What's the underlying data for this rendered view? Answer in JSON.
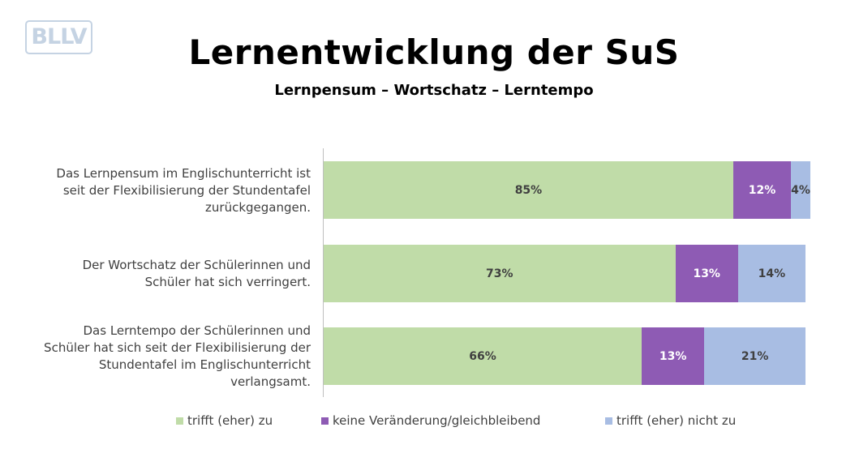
{
  "logo_text": "BLLV",
  "chart_data": {
    "type": "bar",
    "orientation": "horizontal",
    "stacked": true,
    "title": "Lernentwicklung der SuS",
    "subtitle": "Lernpensum – Wortschatz – Lerntempo",
    "categories": [
      "Das Lernpensum im Englischunterricht ist seit der Flexibilisierung der Stundentafel zurückgegangen.",
      "Der Wortschatz der Schülerinnen und Schüler hat sich verringert.",
      "Das Lerntempo der Schülerinnen und Schüler hat sich seit der Flexibilisierung der Stundentafel im Englischunterricht verlangsamt."
    ],
    "series": [
      {
        "name": "trifft (eher) zu",
        "color": "#c0dca8",
        "label_color": "#404040",
        "values": [
          85,
          73,
          66
        ]
      },
      {
        "name": "keine Veränderung/gleichbleibend",
        "color": "#8e5bb4",
        "label_color": "#ffffff",
        "values": [
          12,
          13,
          13
        ]
      },
      {
        "name": "trifft (eher) nicht zu",
        "color": "#a8bde3",
        "label_color": "#404040",
        "values": [
          4,
          14,
          21
        ]
      }
    ],
    "value_suffix": "%",
    "legend_position": "bottom",
    "grid": false
  }
}
